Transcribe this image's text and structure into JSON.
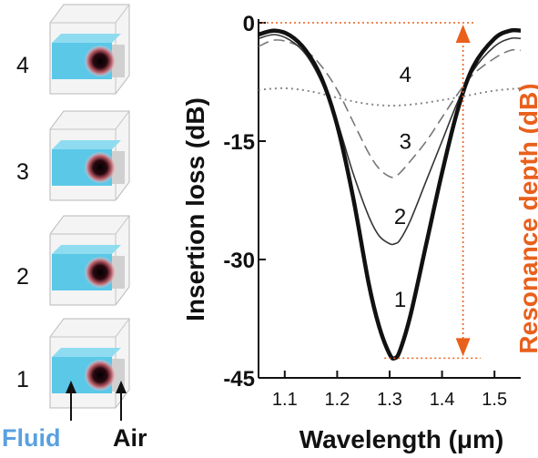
{
  "chart_data": {
    "type": "line",
    "xlabel": "Wavelength (μm)",
    "ylabel": "Insertion loss (dB)",
    "y2label": "Resonance depth (dB)",
    "xlim": [
      1.05,
      1.55
    ],
    "ylim": [
      -45,
      0
    ],
    "xticks": [
      "1.1",
      "1.2",
      "1.3",
      "1.4",
      "1.5"
    ],
    "xtick_values": [
      1.1,
      1.2,
      1.3,
      1.4,
      1.5
    ],
    "yticks": [
      "0",
      "-15",
      "-30",
      "-45"
    ],
    "ytick_values": [
      0,
      -15,
      -30,
      -45
    ],
    "grid": false,
    "series": [
      {
        "name": "1",
        "style": "thick-solid",
        "x": [
          1.05,
          1.08,
          1.11,
          1.14,
          1.17,
          1.2,
          1.23,
          1.26,
          1.28,
          1.3,
          1.31,
          1.32,
          1.34,
          1.37,
          1.4,
          1.43,
          1.46,
          1.5,
          1.53,
          1.55
        ],
        "y": [
          -1.5,
          -1,
          -1.6,
          -3.5,
          -7,
          -13,
          -22,
          -33,
          -38.5,
          -42,
          -42.5,
          -41.5,
          -37,
          -28,
          -19,
          -11,
          -5.5,
          -2,
          -1,
          -1
        ]
      },
      {
        "name": "2",
        "style": "thin-solid",
        "x": [
          1.05,
          1.08,
          1.11,
          1.14,
          1.17,
          1.2,
          1.23,
          1.26,
          1.28,
          1.3,
          1.31,
          1.32,
          1.34,
          1.37,
          1.4,
          1.43,
          1.46,
          1.5,
          1.53,
          1.55
        ],
        "y": [
          -2,
          -1.5,
          -2.2,
          -4,
          -7.5,
          -12.5,
          -19,
          -24.5,
          -27,
          -28,
          -28,
          -27.5,
          -25,
          -20,
          -15,
          -10,
          -6,
          -3,
          -2,
          -2
        ]
      },
      {
        "name": "3",
        "style": "dashed",
        "x": [
          1.05,
          1.08,
          1.11,
          1.14,
          1.17,
          1.2,
          1.23,
          1.26,
          1.28,
          1.3,
          1.31,
          1.32,
          1.34,
          1.37,
          1.4,
          1.43,
          1.46,
          1.5,
          1.53,
          1.55
        ],
        "y": [
          -3,
          -2.2,
          -2.5,
          -3.5,
          -5.5,
          -8.5,
          -12.5,
          -16.5,
          -18.5,
          -19.5,
          -19.5,
          -19,
          -17.5,
          -15,
          -12,
          -9,
          -6.5,
          -4.5,
          -3.5,
          -3.5
        ]
      },
      {
        "name": "4",
        "style": "dotted",
        "x": [
          1.05,
          1.1,
          1.15,
          1.2,
          1.25,
          1.3,
          1.35,
          1.4,
          1.45,
          1.5,
          1.55
        ],
        "y": [
          -8.5,
          -8.3,
          -8.7,
          -9.5,
          -10.2,
          -10.5,
          -10.3,
          -9.8,
          -9.2,
          -8.6,
          -8.3
        ]
      }
    ],
    "annotations": {
      "curve_labels": [
        {
          "text": "4",
          "x": 1.33,
          "y": -7.5
        },
        {
          "text": "3",
          "x": 1.33,
          "y": -16
        },
        {
          "text": "2",
          "x": 1.32,
          "y": -25.5
        },
        {
          "text": "1",
          "x": 1.32,
          "y": -36
        }
      ],
      "resonance_arrow": {
        "color": "#e8601c",
        "from": 0,
        "to": -42.5,
        "x": 1.44
      }
    }
  },
  "side_panel": {
    "cubes": [
      {
        "label": "4",
        "state": "fluid-filled"
      },
      {
        "label": "3",
        "state": "fluid-filled"
      },
      {
        "label": "2",
        "state": "fluid-filled"
      },
      {
        "label": "1",
        "state": "fluid-filled"
      }
    ],
    "fluid_label": "Fluid",
    "air_label": "Air"
  },
  "colors": {
    "fluid": "#5bc8e8",
    "arrow": "#e8601c",
    "fluid_text": "#5aa0e0",
    "axis": "#111111"
  }
}
